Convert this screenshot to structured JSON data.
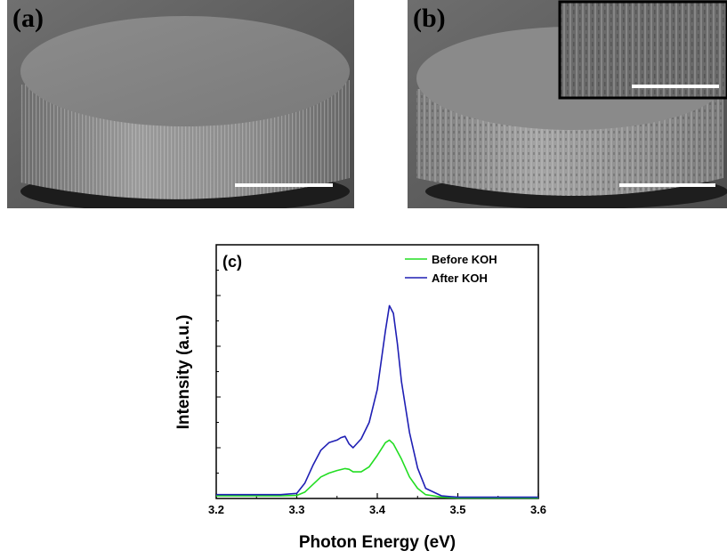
{
  "figure": {
    "panel_a": {
      "label": "(a)"
    },
    "panel_b": {
      "label": "(b)"
    }
  },
  "chart_data": {
    "type": "line",
    "panel_label": "(c)",
    "xlabel": "Photon Energy (eV)",
    "ylabel": "Intensity (a.u.)",
    "xlim": [
      3.2,
      3.6
    ],
    "ylim": [
      0,
      10
    ],
    "x_ticks": [
      "3.2",
      "3.3",
      "3.4",
      "3.5",
      "3.6"
    ],
    "legend_position": "top-right",
    "grid": false,
    "series": [
      {
        "name": "Before KOH",
        "color": "#22dd22",
        "x": [
          3.2,
          3.25,
          3.28,
          3.3,
          3.31,
          3.32,
          3.33,
          3.34,
          3.35,
          3.36,
          3.365,
          3.37,
          3.38,
          3.39,
          3.4,
          3.41,
          3.415,
          3.42,
          3.43,
          3.44,
          3.45,
          3.46,
          3.48,
          3.5,
          3.55,
          3.6
        ],
        "y": [
          0.1,
          0.1,
          0.1,
          0.12,
          0.25,
          0.55,
          0.85,
          1.0,
          1.1,
          1.18,
          1.15,
          1.05,
          1.05,
          1.25,
          1.7,
          2.2,
          2.3,
          2.15,
          1.55,
          0.85,
          0.4,
          0.15,
          0.05,
          0.02,
          0.02,
          0.02
        ]
      },
      {
        "name": "After KOH",
        "color": "#1f1fb4",
        "x": [
          3.2,
          3.25,
          3.28,
          3.3,
          3.31,
          3.32,
          3.33,
          3.34,
          3.35,
          3.355,
          3.36,
          3.365,
          3.37,
          3.38,
          3.39,
          3.4,
          3.41,
          3.415,
          3.42,
          3.425,
          3.43,
          3.44,
          3.45,
          3.46,
          3.48,
          3.5,
          3.55,
          3.6
        ],
        "y": [
          0.15,
          0.15,
          0.15,
          0.2,
          0.6,
          1.3,
          1.9,
          2.2,
          2.3,
          2.4,
          2.45,
          2.15,
          2.0,
          2.35,
          3.0,
          4.3,
          6.6,
          7.6,
          7.3,
          6.1,
          4.6,
          2.6,
          1.2,
          0.4,
          0.1,
          0.05,
          0.05,
          0.05
        ]
      }
    ]
  }
}
